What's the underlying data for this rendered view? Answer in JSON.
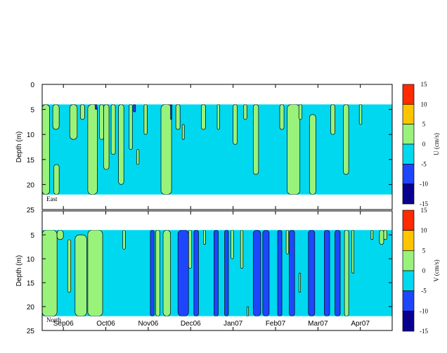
{
  "chart_data": [
    {
      "type": "heatmap",
      "panel_label": "East",
      "ylabel": "Depth (m)",
      "ylim": [
        0,
        25
      ],
      "yticks": [
        0,
        5,
        10,
        15,
        20,
        25
      ],
      "data_depth_range": [
        4,
        22
      ],
      "colorbar": {
        "label": "U (cm/s)",
        "range": [
          -15,
          15
        ],
        "ticks": [
          15,
          10,
          5,
          0,
          -5,
          -10,
          -15
        ]
      },
      "background_class": "-5 to 0",
      "patches": [
        {
          "class": "0 to 5",
          "t": 0.0,
          "d0": 4,
          "d1": 22,
          "w": 0.35
        },
        {
          "class": "0 to 5",
          "t": 0.5,
          "d0": 4,
          "d1": 9,
          "w": 0.3
        },
        {
          "class": "0 to 5",
          "t": 0.55,
          "d0": 16,
          "d1": 22,
          "w": 0.25
        },
        {
          "class": "0 to 5",
          "t": 1.3,
          "d0": 4,
          "d1": 11,
          "w": 0.35
        },
        {
          "class": "0 to 5",
          "t": 1.8,
          "d0": 4,
          "d1": 7,
          "w": 0.2
        },
        {
          "class": "0 to 5",
          "t": 2.15,
          "d0": 4,
          "d1": 22,
          "w": 0.45
        },
        {
          "class": "0 to 5",
          "t": 2.7,
          "d0": 4,
          "d1": 11,
          "w": 0.2
        },
        {
          "class": "0 to 5",
          "t": 2.9,
          "d0": 4,
          "d1": 17,
          "w": 0.25
        },
        {
          "class": "0 to 5",
          "t": 3.25,
          "d0": 4,
          "d1": 14,
          "w": 0.2
        },
        {
          "class": "0 to 5",
          "t": 3.6,
          "d0": 4,
          "d1": 20,
          "w": 0.25
        },
        {
          "class": "0 to 5",
          "t": 4.1,
          "d0": 4,
          "d1": 13,
          "w": 0.15
        },
        {
          "class": "0 to 5",
          "t": 4.45,
          "d0": 13,
          "d1": 16,
          "w": 0.12
        },
        {
          "class": "0 to 5",
          "t": 4.8,
          "d0": 4,
          "d1": 10,
          "w": 0.15
        },
        {
          "class": "0 to 5",
          "t": 5.6,
          "d0": 4,
          "d1": 22,
          "w": 0.5
        },
        {
          "class": "0 to 5",
          "t": 6.3,
          "d0": 4,
          "d1": 9,
          "w": 0.2
        },
        {
          "class": "0 to 5",
          "t": 6.6,
          "d0": 8,
          "d1": 11,
          "w": 0.1
        },
        {
          "class": "0 to 5",
          "t": 7.5,
          "d0": 4,
          "d1": 9,
          "w": 0.2
        },
        {
          "class": "0 to 5",
          "t": 8.25,
          "d0": 4,
          "d1": 9,
          "w": 0.12
        },
        {
          "class": "0 to 5",
          "t": 9.0,
          "d0": 4,
          "d1": 12,
          "w": 0.2
        },
        {
          "class": "0 to 5",
          "t": 9.5,
          "d0": 4,
          "d1": 7,
          "w": 0.15
        },
        {
          "class": "0 to 5",
          "t": 9.95,
          "d0": 4,
          "d1": 18,
          "w": 0.25
        },
        {
          "class": "0 to 5",
          "t": 11.2,
          "d0": 4,
          "d1": 9,
          "w": 0.2
        },
        {
          "class": "0 to 5",
          "t": 11.55,
          "d0": 4,
          "d1": 22,
          "w": 0.6
        },
        {
          "class": "0 to 5",
          "t": 12.1,
          "d0": 4,
          "d1": 7,
          "w": 0.15
        },
        {
          "class": "0 to 5",
          "t": 12.6,
          "d0": 6,
          "d1": 22,
          "w": 0.3
        },
        {
          "class": "0 to 5",
          "t": 13.6,
          "d0": 4,
          "d1": 10,
          "w": 0.2
        },
        {
          "class": "0 to 5",
          "t": 14.2,
          "d0": 4,
          "d1": 18,
          "w": 0.25
        },
        {
          "class": "0 to 5",
          "t": 14.95,
          "d0": 4,
          "d1": 8,
          "w": 0.12
        },
        {
          "class": "-10 to -5",
          "t": 2.5,
          "d0": 4,
          "d1": 5,
          "w": 0.08
        },
        {
          "class": "-10 to -5",
          "t": 4.3,
          "d0": 4,
          "d1": 5.5,
          "w": 0.1
        },
        {
          "class": "-10 to -5",
          "t": 6.05,
          "d0": 4,
          "d1": 7,
          "w": 0.06
        }
      ]
    },
    {
      "type": "heatmap",
      "panel_label": "North",
      "ylabel": "Depth (m)",
      "ylim": [
        0,
        25
      ],
      "yticks": [
        5,
        10,
        15,
        20,
        25
      ],
      "data_depth_range": [
        4,
        22
      ],
      "colorbar": {
        "label": "V (cm/s)",
        "range": [
          -15,
          15
        ],
        "ticks": [
          15,
          10,
          5,
          0,
          -5,
          -10,
          -15
        ]
      },
      "background_class": "-5 to 0",
      "patches": [
        {
          "class": "0 to 5",
          "t": 0.0,
          "d0": 4,
          "d1": 22,
          "w": 0.7
        },
        {
          "class": "0 to 5",
          "t": 0.7,
          "d0": 4,
          "d1": 6,
          "w": 0.3
        },
        {
          "class": "0 to 5",
          "t": 1.2,
          "d0": 6,
          "d1": 17,
          "w": 0.15
        },
        {
          "class": "0 to 5",
          "t": 1.55,
          "d0": 5,
          "d1": 22,
          "w": 0.55
        },
        {
          "class": "0 to 5",
          "t": 2.15,
          "d0": 4,
          "d1": 22,
          "w": 0.7
        },
        {
          "class": "0 to 5",
          "t": 3.8,
          "d0": 4,
          "d1": 8,
          "w": 0.12
        },
        {
          "class": "0 to 5",
          "t": 5.35,
          "d0": 4,
          "d1": 22,
          "w": 0.2
        },
        {
          "class": "0 to 5",
          "t": 5.7,
          "d0": 4,
          "d1": 22,
          "w": 0.35
        },
        {
          "class": "0 to 5",
          "t": 6.9,
          "d0": 4,
          "d1": 12,
          "w": 0.15
        },
        {
          "class": "0 to 5",
          "t": 7.6,
          "d0": 4,
          "d1": 7,
          "w": 0.1
        },
        {
          "class": "0 to 5",
          "t": 8.9,
          "d0": 4,
          "d1": 10,
          "w": 0.12
        },
        {
          "class": "0 to 5",
          "t": 9.35,
          "d0": 4,
          "d1": 12,
          "w": 0.12
        },
        {
          "class": "0 to 5",
          "t": 9.65,
          "d0": 20,
          "d1": 22,
          "w": 0.08
        },
        {
          "class": "0 to 5",
          "t": 11.5,
          "d0": 4,
          "d1": 9,
          "w": 0.12
        },
        {
          "class": "0 to 5",
          "t": 12.1,
          "d0": 13,
          "d1": 17,
          "w": 0.08
        },
        {
          "class": "0 to 5",
          "t": 14.25,
          "d0": 4,
          "d1": 22,
          "w": 0.2
        },
        {
          "class": "0 to 5",
          "t": 14.6,
          "d0": 4,
          "d1": 13,
          "w": 0.1
        },
        {
          "class": "0 to 5",
          "t": 15.5,
          "d0": 4,
          "d1": 6,
          "w": 0.1
        },
        {
          "class": "0 to 5",
          "t": 15.9,
          "d0": 4,
          "d1": 7,
          "w": 0.2
        },
        {
          "class": "0 to 5",
          "t": 16.1,
          "d0": 4,
          "d1": 6,
          "w": 0.15
        },
        {
          "class": "-10 to -5",
          "t": 5.1,
          "d0": 4,
          "d1": 22,
          "w": 0.18
        },
        {
          "class": "-10 to -5",
          "t": 6.4,
          "d0": 4,
          "d1": 22,
          "w": 0.5
        },
        {
          "class": "-10 to -5",
          "t": 7.15,
          "d0": 4,
          "d1": 22,
          "w": 0.22
        },
        {
          "class": "-10 to -5",
          "t": 8.1,
          "d0": 4,
          "d1": 22,
          "w": 0.2
        },
        {
          "class": "-10 to -5",
          "t": 8.6,
          "d0": 4,
          "d1": 22,
          "w": 0.18
        },
        {
          "class": "-10 to -5",
          "t": 9.95,
          "d0": 4,
          "d1": 22,
          "w": 0.35
        },
        {
          "class": "-10 to -5",
          "t": 10.4,
          "d0": 4,
          "d1": 22,
          "w": 0.3
        },
        {
          "class": "-10 to -5",
          "t": 11.1,
          "d0": 4,
          "d1": 22,
          "w": 0.2
        },
        {
          "class": "-10 to -5",
          "t": 11.65,
          "d0": 4,
          "d1": 22,
          "w": 0.25
        },
        {
          "class": "-10 to -5",
          "t": 12.55,
          "d0": 4,
          "d1": 22,
          "w": 0.3
        },
        {
          "class": "-10 to -5",
          "t": 13.3,
          "d0": 4,
          "d1": 22,
          "w": 0.25
        },
        {
          "class": "-10 to -5",
          "t": 13.8,
          "d0": 4,
          "d1": 22,
          "w": 0.25
        }
      ]
    }
  ],
  "time_axis": {
    "range_months": [
      0,
      16.5
    ],
    "ticks": [
      {
        "label": "Sep06",
        "m": 1.0
      },
      {
        "label": "Oct06",
        "m": 3.0
      },
      {
        "label": "Nov06",
        "m": 5.0
      },
      {
        "label": "Dec06",
        "m": 7.0
      },
      {
        "label": "Jan07",
        "m": 9.0
      },
      {
        "label": "Feb07",
        "m": 11.0
      },
      {
        "label": "Mar07",
        "m": 13.0
      },
      {
        "label": "Apr07",
        "m": 15.0
      }
    ]
  },
  "color_classes": [
    {
      "class": "10 to 15",
      "color": "#ff2a00"
    },
    {
      "class": "5 to 10",
      "color": "#ffc400"
    },
    {
      "class": "0 to 5",
      "color": "#99f27a"
    },
    {
      "class": "-5 to 0",
      "color": "#00d8f0"
    },
    {
      "class": "-10 to -5",
      "color": "#1e46ff"
    },
    {
      "class": "-15 to -10",
      "color": "#0a0090"
    }
  ]
}
